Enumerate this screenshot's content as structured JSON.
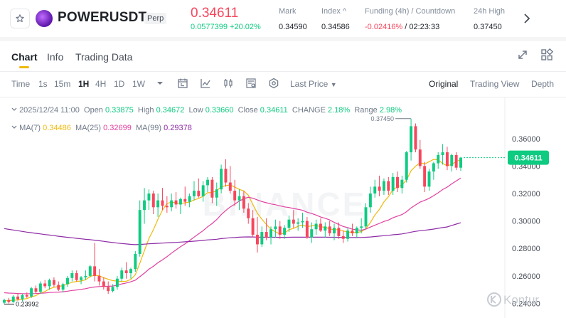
{
  "header": {
    "symbol": "POWERUSDT",
    "contract_type": "Perp",
    "last_price": "0.34611",
    "change": "0.0577399 +20.02%",
    "stats": [
      {
        "label": "Mark",
        "value": "0.34590",
        "negative": false
      },
      {
        "label": "Index ^",
        "value": "0.34586",
        "negative": false
      },
      {
        "label": "Funding (4h) / Countdown",
        "value_neg": "-0.02416%",
        "value_rest": " / 02:23:33"
      },
      {
        "label": "24h High",
        "value": "0.37450",
        "negative": false
      }
    ],
    "icons": {
      "favorite": "star-icon",
      "coin": "power-coin-logo",
      "more": "chevron-right-icon"
    }
  },
  "tabs": [
    "Chart",
    "Info",
    "Trading Data"
  ],
  "toolbar": {
    "time_label": "Time",
    "intervals": [
      "1s",
      "15m",
      "1H",
      "4H",
      "1D",
      "1W"
    ],
    "active_interval": "1H",
    "price_type": "Last Price",
    "views": [
      "Original",
      "Trading View",
      "Depth"
    ],
    "active_view": "Original",
    "icons": [
      "interval-dropdown-icon",
      "calendar-icon",
      "indicator-icon",
      "candle-type-icon",
      "settings-list-icon",
      "settings-gear-icon"
    ]
  },
  "ohlc": {
    "date": "2025/12/24 11:00",
    "open_label": "Open",
    "open": "0.33875",
    "high_label": "High",
    "high": "0.34672",
    "low_label": "Low",
    "low": "0.33660",
    "close_label": "Close",
    "close": "0.34611",
    "change_label": "CHANGE",
    "change": "2.18%",
    "range_label": "Range",
    "range": "2.98%"
  },
  "ma": {
    "ma7_label": "MA(7)",
    "ma7": "0.34486",
    "ma25_label": "MA(25)",
    "ma25": "0.32699",
    "ma99_label": "MA(99)",
    "ma99": "0.29378"
  },
  "colors": {
    "up": "#0ecb81",
    "down": "#f6465d",
    "ma7": "#f0b90b",
    "ma25": "#e040a0",
    "ma99": "#8e2aa6",
    "accent": "#f0b90b"
  },
  "watermark": "Kontur",
  "chart_data": {
    "type": "candlestick",
    "y_ticks": [
      "0.36000",
      "0.34000",
      "0.32000",
      "0.30000",
      "0.28000",
      "0.26000",
      "0.24000"
    ],
    "ylim": [
      0.233,
      0.378
    ],
    "current_price": "0.34611",
    "high_marker": "0.37450",
    "low_marker": "0.23992",
    "candles": [
      [
        0.2405,
        0.2435,
        0.2395,
        0.2425
      ],
      [
        0.2425,
        0.244,
        0.24,
        0.241
      ],
      [
        0.241,
        0.246,
        0.2405,
        0.245
      ],
      [
        0.245,
        0.2475,
        0.242,
        0.243
      ],
      [
        0.243,
        0.247,
        0.2415,
        0.246
      ],
      [
        0.246,
        0.248,
        0.244,
        0.245
      ],
      [
        0.245,
        0.252,
        0.244,
        0.251
      ],
      [
        0.251,
        0.253,
        0.247,
        0.2485
      ],
      [
        0.2485,
        0.256,
        0.247,
        0.2545
      ],
      [
        0.2545,
        0.257,
        0.251,
        0.2525
      ],
      [
        0.2525,
        0.258,
        0.25,
        0.257
      ],
      [
        0.257,
        0.259,
        0.252,
        0.2535
      ],
      [
        0.2535,
        0.256,
        0.249,
        0.25
      ],
      [
        0.25,
        0.255,
        0.248,
        0.254
      ],
      [
        0.254,
        0.26,
        0.252,
        0.2585
      ],
      [
        0.2585,
        0.264,
        0.256,
        0.262
      ],
      [
        0.262,
        0.264,
        0.256,
        0.257
      ],
      [
        0.257,
        0.26,
        0.254,
        0.259
      ],
      [
        0.259,
        0.264,
        0.257,
        0.26
      ],
      [
        0.26,
        0.268,
        0.259,
        0.267
      ],
      [
        0.267,
        0.284,
        0.256,
        0.26
      ],
      [
        0.26,
        0.265,
        0.253,
        0.256
      ],
      [
        0.256,
        0.259,
        0.25,
        0.252
      ],
      [
        0.252,
        0.256,
        0.247,
        0.249
      ],
      [
        0.249,
        0.254,
        0.248,
        0.252
      ],
      [
        0.252,
        0.26,
        0.25,
        0.258
      ],
      [
        0.258,
        0.266,
        0.256,
        0.264
      ],
      [
        0.264,
        0.27,
        0.258,
        0.262
      ],
      [
        0.262,
        0.266,
        0.258,
        0.265
      ],
      [
        0.265,
        0.278,
        0.263,
        0.276
      ],
      [
        0.276,
        0.315,
        0.274,
        0.308
      ],
      [
        0.308,
        0.324,
        0.298,
        0.315
      ],
      [
        0.315,
        0.323,
        0.308,
        0.32
      ],
      [
        0.32,
        0.322,
        0.305,
        0.31
      ],
      [
        0.31,
        0.32,
        0.303,
        0.315
      ],
      [
        0.315,
        0.324,
        0.308,
        0.311
      ],
      [
        0.311,
        0.318,
        0.306,
        0.31
      ],
      [
        0.31,
        0.32,
        0.307,
        0.315
      ],
      [
        0.315,
        0.321,
        0.309,
        0.312
      ],
      [
        0.312,
        0.317,
        0.305,
        0.316
      ],
      [
        0.316,
        0.325,
        0.311,
        0.314
      ],
      [
        0.314,
        0.32,
        0.31,
        0.318
      ],
      [
        0.318,
        0.329,
        0.315,
        0.322
      ],
      [
        0.322,
        0.331,
        0.317,
        0.318
      ],
      [
        0.318,
        0.329,
        0.314,
        0.326
      ],
      [
        0.326,
        0.332,
        0.321,
        0.33
      ],
      [
        0.33,
        0.332,
        0.313,
        0.317
      ],
      [
        0.317,
        0.328,
        0.311,
        0.323
      ],
      [
        0.323,
        0.341,
        0.32,
        0.338
      ],
      [
        0.338,
        0.345,
        0.325,
        0.328
      ],
      [
        0.328,
        0.34,
        0.32,
        0.322
      ],
      [
        0.322,
        0.33,
        0.311,
        0.315
      ],
      [
        0.315,
        0.323,
        0.308,
        0.318
      ],
      [
        0.318,
        0.322,
        0.306,
        0.309
      ],
      [
        0.309,
        0.313,
        0.298,
        0.302
      ],
      [
        0.302,
        0.308,
        0.288,
        0.29
      ],
      [
        0.29,
        0.303,
        0.277,
        0.283
      ],
      [
        0.283,
        0.296,
        0.281,
        0.292
      ],
      [
        0.292,
        0.302,
        0.286,
        0.288
      ],
      [
        0.288,
        0.296,
        0.283,
        0.294
      ],
      [
        0.294,
        0.301,
        0.288,
        0.296
      ],
      [
        0.296,
        0.3,
        0.287,
        0.29
      ],
      [
        0.29,
        0.297,
        0.287,
        0.295
      ],
      [
        0.295,
        0.304,
        0.292,
        0.301
      ],
      [
        0.301,
        0.308,
        0.295,
        0.298
      ],
      [
        0.298,
        0.302,
        0.293,
        0.299
      ],
      [
        0.299,
        0.306,
        0.295,
        0.3
      ],
      [
        0.3,
        0.303,
        0.287,
        0.288
      ],
      [
        0.288,
        0.299,
        0.284,
        0.294
      ],
      [
        0.294,
        0.301,
        0.29,
        0.298
      ],
      [
        0.298,
        0.302,
        0.292,
        0.293
      ],
      [
        0.293,
        0.299,
        0.288,
        0.296
      ],
      [
        0.296,
        0.3,
        0.289,
        0.291
      ],
      [
        0.291,
        0.298,
        0.286,
        0.295
      ],
      [
        0.295,
        0.299,
        0.287,
        0.289
      ],
      [
        0.289,
        0.293,
        0.284,
        0.287
      ],
      [
        0.287,
        0.295,
        0.285,
        0.293
      ],
      [
        0.293,
        0.298,
        0.289,
        0.291
      ],
      [
        0.291,
        0.296,
        0.288,
        0.295
      ],
      [
        0.295,
        0.302,
        0.291,
        0.296
      ],
      [
        0.296,
        0.313,
        0.294,
        0.31
      ],
      [
        0.31,
        0.325,
        0.306,
        0.32
      ],
      [
        0.32,
        0.33,
        0.317,
        0.325
      ],
      [
        0.325,
        0.333,
        0.318,
        0.322
      ],
      [
        0.322,
        0.331,
        0.319,
        0.329
      ],
      [
        0.329,
        0.332,
        0.319,
        0.322
      ],
      [
        0.322,
        0.335,
        0.319,
        0.332
      ],
      [
        0.332,
        0.336,
        0.321,
        0.324
      ],
      [
        0.324,
        0.333,
        0.32,
        0.33
      ],
      [
        0.33,
        0.351,
        0.328,
        0.35
      ],
      [
        0.35,
        0.3745,
        0.344,
        0.369
      ],
      [
        0.369,
        0.371,
        0.35,
        0.352
      ],
      [
        0.352,
        0.359,
        0.338,
        0.34
      ],
      [
        0.34,
        0.343,
        0.321,
        0.325
      ],
      [
        0.325,
        0.338,
        0.322,
        0.336
      ],
      [
        0.336,
        0.343,
        0.33,
        0.342
      ],
      [
        0.342,
        0.35,
        0.338,
        0.348
      ],
      [
        0.348,
        0.356,
        0.341,
        0.35
      ],
      [
        0.35,
        0.354,
        0.337,
        0.34
      ],
      [
        0.34,
        0.349,
        0.336,
        0.348
      ],
      [
        0.348,
        0.35,
        0.337,
        0.3388
      ],
      [
        0.3388,
        0.3467,
        0.3366,
        0.3461
      ]
    ]
  }
}
